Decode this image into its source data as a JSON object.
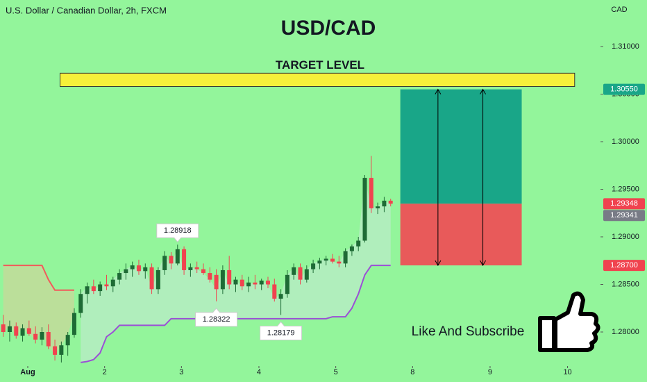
{
  "chart_data": {
    "type": "candlestick",
    "header": "U.S. Dollar / Canadian Dollar, 2h, FXCM",
    "title": "USD/CAD",
    "currency": "CAD",
    "caption": "Like And Subscribe",
    "ylim": [
      1.27657,
      1.31489
    ],
    "xlim": [
      -0.5,
      92.5
    ],
    "yticks": [
      {
        "value": 1.31,
        "label": "1.31000"
      },
      {
        "value": 1.305,
        "label": "1.30500"
      },
      {
        "value": 1.3,
        "label": "1.30000"
      },
      {
        "value": 1.295,
        "label": "1.29500"
      },
      {
        "value": 1.29,
        "label": "1.29000"
      },
      {
        "value": 1.285,
        "label": "1.28500"
      },
      {
        "value": 1.28,
        "label": "1.28000"
      }
    ],
    "xticks": [
      {
        "value": 3.8,
        "label": "Aug"
      },
      {
        "value": 15.7,
        "label": "2"
      },
      {
        "value": 27.6,
        "label": "3"
      },
      {
        "value": 39.6,
        "label": "4"
      },
      {
        "value": 51.5,
        "label": "5"
      },
      {
        "value": 63.4,
        "label": "8"
      },
      {
        "value": 75.4,
        "label": "9"
      },
      {
        "value": 87.4,
        "label": "10"
      }
    ],
    "up_color": "#1e6b35",
    "down_color": "#f0434f",
    "open": [
      1.2808,
      1.28,
      1.2806,
      1.2796,
      1.2804,
      1.2798,
      1.2792,
      1.28,
      1.2785,
      1.2776,
      1.2786,
      1.2797,
      1.282,
      1.284,
      1.2848,
      1.2843,
      1.285,
      1.2848,
      1.2855,
      1.2862,
      1.2866,
      1.287,
      1.2864,
      1.2868,
      1.2845,
      1.2865,
      1.288,
      1.2872,
      1.2887,
      1.2865,
      1.2868,
      1.2866,
      1.2862,
      1.286,
      1.2845,
      1.2865,
      1.285,
      1.2855,
      1.2848,
      1.2852,
      1.285,
      1.2854,
      1.285,
      1.2835,
      1.284,
      1.286,
      1.2868,
      1.2855,
      1.2866,
      1.2872,
      1.2875,
      1.2877,
      1.2874,
      1.2872,
      1.2885,
      1.289,
      1.2896,
      1.2962,
      1.293,
      1.2932,
      1.2938
    ],
    "high": [
      1.2818,
      1.2812,
      1.281,
      1.2808,
      1.2812,
      1.2806,
      1.2805,
      1.2808,
      1.2792,
      1.279,
      1.28,
      1.2825,
      1.2845,
      1.2852,
      1.2855,
      1.2853,
      1.286,
      1.2858,
      1.2866,
      1.2872,
      1.2874,
      1.2876,
      1.2872,
      1.2872,
      1.2868,
      1.2885,
      1.2884,
      1.28918,
      1.289,
      1.2872,
      1.2874,
      1.2872,
      1.2868,
      1.2866,
      1.287,
      1.288,
      1.2858,
      1.286,
      1.2858,
      1.286,
      1.2856,
      1.2858,
      1.2856,
      1.2845,
      1.2865,
      1.2872,
      1.2872,
      1.287,
      1.2876,
      1.2878,
      1.288,
      1.2882,
      1.288,
      1.2888,
      1.2892,
      1.29,
      1.2965,
      1.2985,
      1.2936,
      1.2942,
      1.294
    ],
    "low": [
      1.2795,
      1.279,
      1.2793,
      1.279,
      1.2796,
      1.2788,
      1.2786,
      1.2782,
      1.277,
      1.2768,
      1.2775,
      1.2794,
      1.2815,
      1.283,
      1.284,
      1.2838,
      1.2844,
      1.2842,
      1.285,
      1.2855,
      1.2858,
      1.286,
      1.2856,
      1.284,
      1.284,
      1.286,
      1.2866,
      1.287,
      1.286,
      1.2858,
      1.2862,
      1.286,
      1.2852,
      1.28322,
      1.284,
      1.2845,
      1.2842,
      1.2844,
      1.2842,
      1.2845,
      1.2844,
      1.2846,
      1.2832,
      1.28179,
      1.2836,
      1.2855,
      1.285,
      1.2852,
      1.2862,
      1.2866,
      1.287,
      1.2872,
      1.2868,
      1.2868,
      1.288,
      1.2885,
      1.2894,
      1.2925,
      1.2924,
      1.2926,
      1.2932
    ],
    "close": [
      1.28,
      1.2806,
      1.2796,
      1.2804,
      1.2798,
      1.2792,
      1.28,
      1.2785,
      1.2776,
      1.2786,
      1.2797,
      1.282,
      1.284,
      1.2848,
      1.2843,
      1.285,
      1.2848,
      1.2855,
      1.2862,
      1.2866,
      1.287,
      1.2864,
      1.2868,
      1.2845,
      1.2865,
      1.288,
      1.2872,
      1.2887,
      1.2865,
      1.2868,
      1.2866,
      1.2862,
      1.2855,
      1.2845,
      1.2865,
      1.285,
      1.2855,
      1.2848,
      1.2852,
      1.285,
      1.2854,
      1.285,
      1.2835,
      1.284,
      1.286,
      1.2868,
      1.2855,
      1.2866,
      1.2872,
      1.2875,
      1.2877,
      1.2874,
      1.2872,
      1.2885,
      1.289,
      1.2896,
      1.2962,
      1.293,
      1.2932,
      1.2938,
      1.29348
    ],
    "series": [
      {
        "color": "#9b4fd6",
        "fill": "#b8ecc4",
        "values": [
          null,
          null,
          null,
          null,
          null,
          null,
          null,
          null,
          null,
          null,
          null,
          null,
          1.2768,
          1.2769,
          1.2771,
          1.2778,
          1.2795,
          1.28,
          1.2807,
          1.2807,
          1.2807,
          1.2807,
          1.2807,
          1.2807,
          1.2807,
          1.2807,
          1.2814,
          1.2814,
          1.2814,
          1.2814,
          1.2814,
          1.2814,
          1.2814,
          1.2814,
          1.2814,
          1.2814,
          1.2814,
          1.2814,
          1.2814,
          1.2814,
          1.2814,
          1.2814,
          1.2814,
          1.2814,
          1.2814,
          1.2814,
          1.2814,
          1.2814,
          1.2814,
          1.2814,
          1.2814,
          1.2816,
          1.2816,
          1.2816,
          1.2825,
          1.284,
          1.286,
          1.287,
          1.287,
          1.287,
          1.287
        ]
      },
      {
        "color": "#f25a5a",
        "fill": "#c5d99a",
        "values": [
          1.287,
          1.287,
          1.287,
          1.287,
          1.287,
          1.287,
          1.287,
          1.2855,
          1.2844,
          1.2844,
          1.2844,
          1.2844,
          null,
          null,
          null,
          null,
          null,
          null,
          null,
          null,
          null,
          null,
          null,
          null,
          null,
          null,
          null,
          null,
          null,
          null,
          null,
          null,
          null,
          null,
          null,
          null,
          null,
          null,
          null,
          null,
          null,
          null,
          null,
          null,
          null,
          null,
          null,
          null,
          null,
          null,
          null,
          null,
          null,
          null,
          null,
          null,
          null,
          null,
          null,
          null,
          null
        ]
      }
    ],
    "annotations": [
      {
        "index": 27,
        "value": 1.28918,
        "position": "above"
      },
      {
        "index": 33,
        "value": 1.28322,
        "position": "below"
      },
      {
        "index": 43,
        "value": 1.28179,
        "position": "below"
      }
    ],
    "target_zone": {
      "label": "TARGET LEVEL",
      "top": 1.3072,
      "bottom": 1.3058,
      "start": 8.8,
      "end": 88.5,
      "color": "#f6f03a"
    },
    "position": {
      "start": 61.5,
      "end": 80.3,
      "target": 1.3055,
      "entry": 1.29348,
      "stop": 1.287,
      "profit_color": "#19a688",
      "loss_color": "#e85a5a"
    },
    "price_labels": [
      {
        "value": 1.3055,
        "label": "1.30550",
        "color": "#19a688"
      },
      {
        "value": 1.29348,
        "label": "1.29348",
        "color": "#f0434f"
      },
      {
        "value": 1.29341,
        "label": "1.29341",
        "color": "#787b86"
      },
      {
        "value": 1.287,
        "label": "1.28700",
        "color": "#f0434f"
      }
    ]
  }
}
